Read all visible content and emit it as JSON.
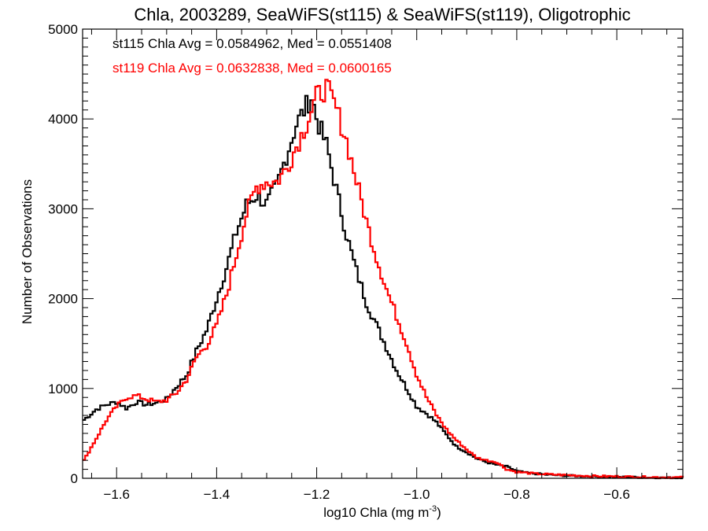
{
  "chart_data": {
    "type": "line",
    "style": "histogram-step",
    "title": "Chla, 2003289, SeaWiFS(st115) & SeaWiFS(st119), Oligotrophic",
    "xlabel": "log10 Chla (mg m",
    "xlabel_superscript": "-3",
    "xlabel_suffix": ")",
    "ylabel": "Number of Observations",
    "xlim": [
      -1.668,
      -0.468
    ],
    "ylim": [
      0,
      5000
    ],
    "xticks": [
      -1.6,
      -1.4,
      -1.2,
      -1.0,
      -0.8,
      -0.6
    ],
    "xtick_labels": [
      "−1.6",
      "−1.4",
      "−1.2",
      "−1.0",
      "−0.8",
      "−0.6"
    ],
    "x_minor_step": 0.05,
    "yticks": [
      0,
      1000,
      2000,
      3000,
      4000,
      5000
    ],
    "ytick_labels": [
      "0",
      "1000",
      "2000",
      "3000",
      "4000",
      "5000"
    ],
    "y_minor_step": 100,
    "grid": false,
    "annotations": [
      {
        "text": "st115 Chla Avg = 0.0584962, Med = 0.0551408",
        "color": "#000000"
      },
      {
        "text": "st119 Chla Avg = 0.0632838, Med = 0.0600165",
        "color": "#ff0000"
      }
    ],
    "x": [
      -1.665,
      -1.64,
      -1.62,
      -1.6,
      -1.58,
      -1.56,
      -1.54,
      -1.52,
      -1.5,
      -1.48,
      -1.46,
      -1.44,
      -1.42,
      -1.4,
      -1.38,
      -1.36,
      -1.34,
      -1.32,
      -1.3,
      -1.28,
      -1.26,
      -1.24,
      -1.22,
      -1.21,
      -1.2,
      -1.18,
      -1.16,
      -1.14,
      -1.12,
      -1.1,
      -1.08,
      -1.06,
      -1.04,
      -1.02,
      -1.0,
      -0.98,
      -0.96,
      -0.94,
      -0.92,
      -0.9,
      -0.88,
      -0.86,
      -0.84,
      -0.82,
      -0.8,
      -0.78,
      -0.76,
      -0.74,
      -0.7,
      -0.65,
      -0.6,
      -0.55,
      -0.5,
      -0.47
    ],
    "series": [
      {
        "name": "st115",
        "color": "#000000",
        "values": [
          650,
          770,
          820,
          850,
          780,
          850,
          820,
          840,
          880,
          1020,
          1150,
          1420,
          1650,
          2000,
          2350,
          2750,
          3050,
          3150,
          3050,
          3250,
          3600,
          3950,
          4150,
          4250,
          4000,
          3700,
          3200,
          2700,
          2300,
          1950,
          1700,
          1450,
          1200,
          1000,
          800,
          720,
          620,
          480,
          350,
          290,
          220,
          180,
          150,
          130,
          80,
          60,
          50,
          40,
          30,
          20,
          15,
          10,
          5,
          5
        ]
      },
      {
        "name": "st119",
        "color": "#ff0000",
        "values": [
          200,
          450,
          650,
          800,
          900,
          920,
          880,
          850,
          870,
          950,
          1100,
          1350,
          1480,
          1700,
          2050,
          2500,
          2950,
          3250,
          3300,
          3300,
          3450,
          3700,
          3950,
          4100,
          4250,
          4350,
          4100,
          3750,
          3300,
          2850,
          2450,
          2100,
          1800,
          1500,
          1150,
          900,
          700,
          540,
          420,
          320,
          230,
          200,
          180,
          100,
          70,
          60,
          50,
          45,
          35,
          25,
          20,
          15,
          10,
          10
        ]
      }
    ]
  }
}
